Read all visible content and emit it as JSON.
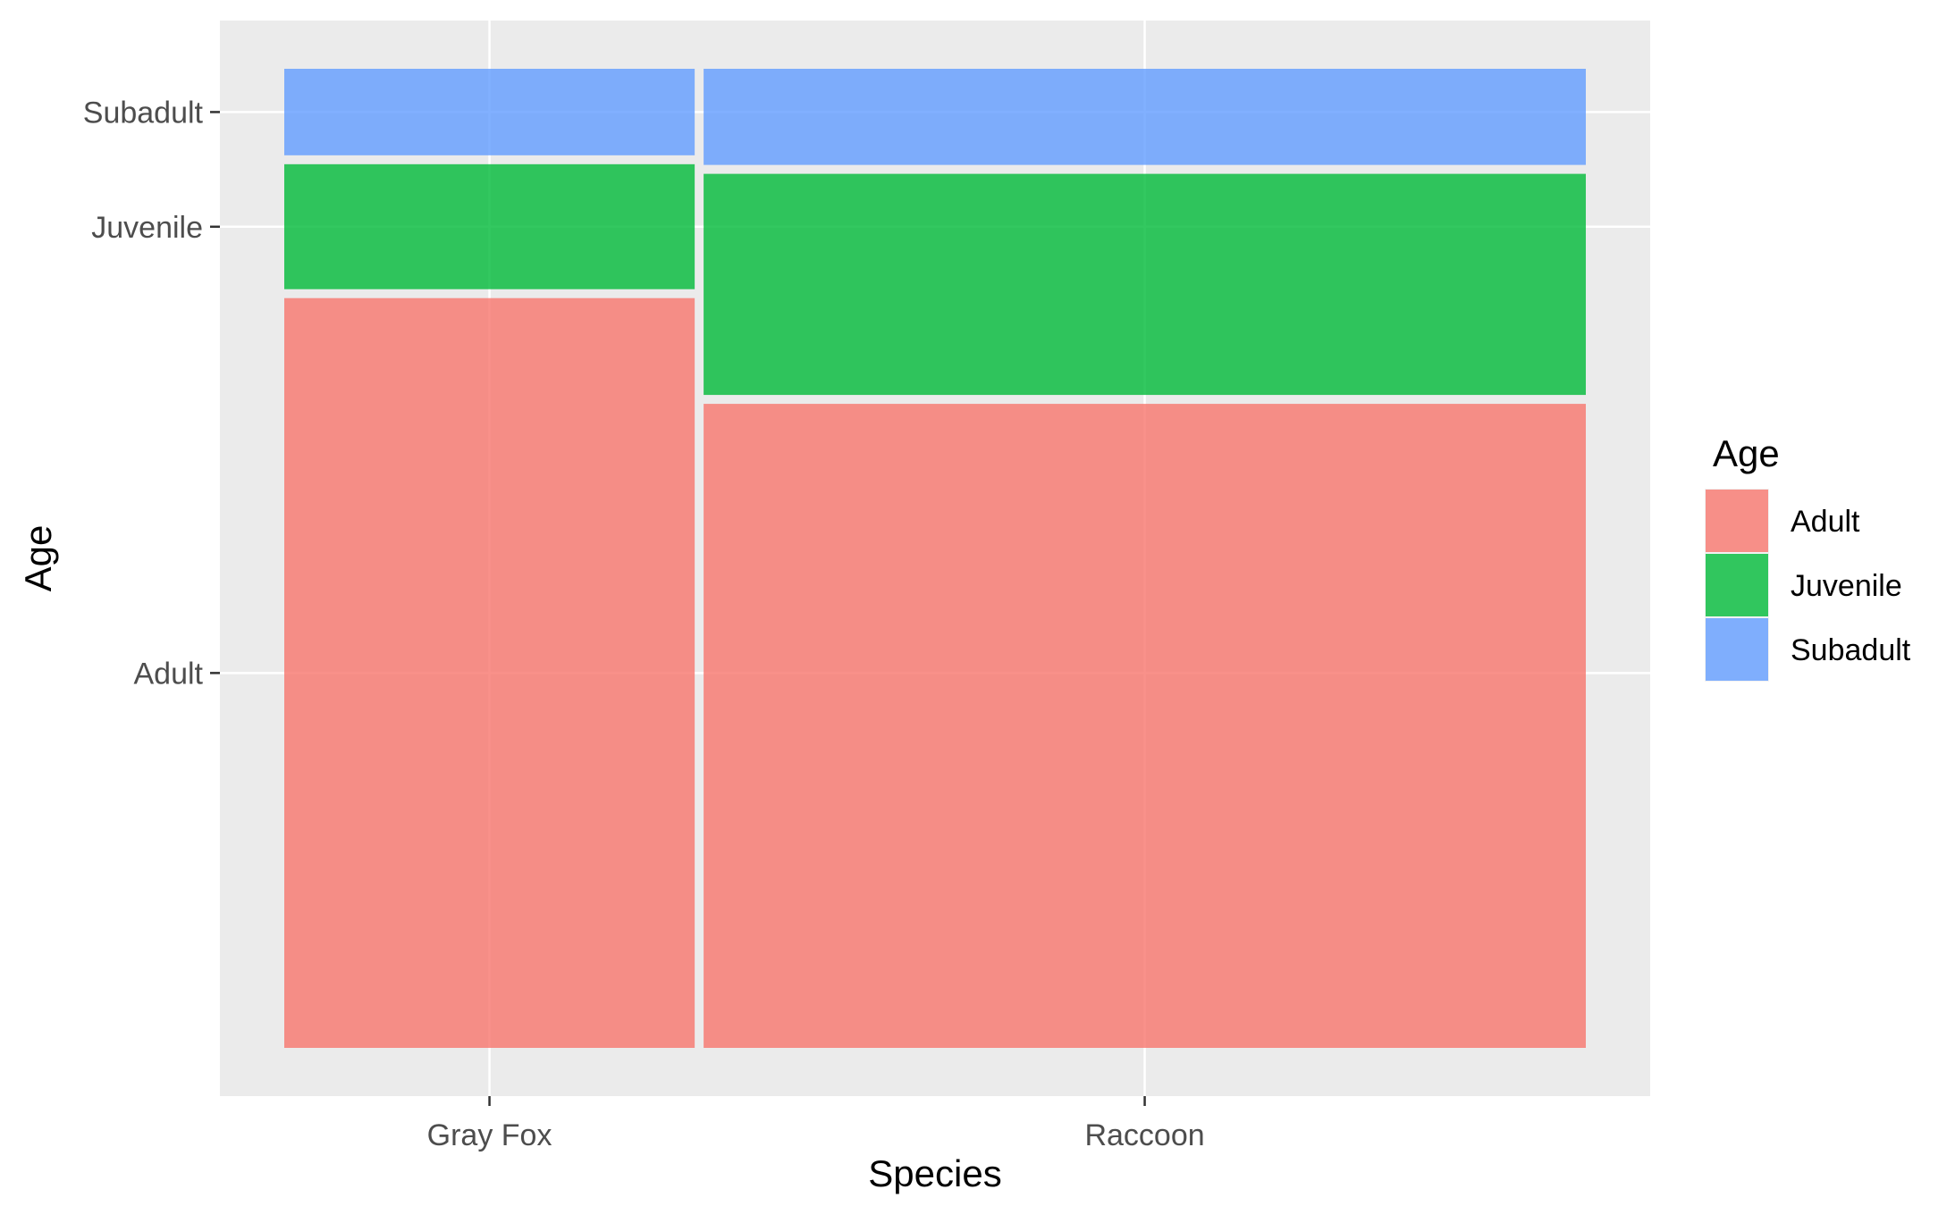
{
  "chart_data": {
    "type": "mosaic",
    "xlabel": "Species",
    "ylabel": "Age",
    "categories": [
      "Gray Fox",
      "Raccoon"
    ],
    "category_widths": [
      0.32,
      0.68
    ],
    "age_levels": [
      "Adult",
      "Juvenile",
      "Subadult"
    ],
    "proportions": {
      "Gray Fox": {
        "Adult": 0.78,
        "Juvenile": 0.13,
        "Subadult": 0.09
      },
      "Raccoon": {
        "Adult": 0.67,
        "Juvenile": 0.23,
        "Subadult": 0.1
      }
    },
    "y_tick_labels": [
      "Adult",
      "Juvenile",
      "Subadult"
    ],
    "x_tick_labels": [
      "Gray Fox",
      "Raccoon"
    ],
    "legend": {
      "title": "Age",
      "position": "right",
      "items": [
        {
          "label": "Adult",
          "color": "#F8766D"
        },
        {
          "label": "Juvenile",
          "color": "#00BA38"
        },
        {
          "label": "Subadult",
          "color": "#619CFF"
        }
      ]
    },
    "colors": {
      "Adult": "#F8766D",
      "Juvenile": "#00BA38",
      "Subadult": "#619CFF",
      "panel_background": "#EBEBEB",
      "grid": "#FFFFFF"
    },
    "fill_opacity": 0.8,
    "grid": true
  }
}
